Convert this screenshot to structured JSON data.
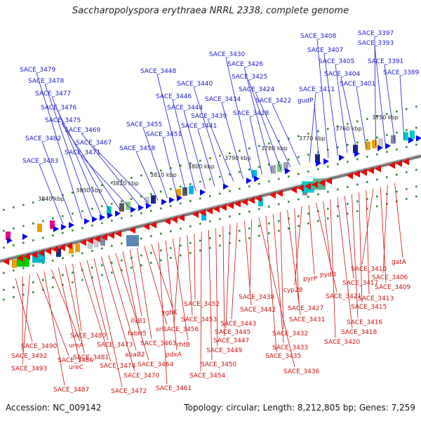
{
  "title": "Saccharopolyspora erythraea NRRL 2338, complete genome",
  "footer": {
    "accession": "Accession: NC_009142",
    "stats": "Topology: circular; Length: 8,212,805 bp; Genes: 7,259"
  },
  "colors": {
    "forward_arrow": "#0000ee",
    "reverse_arrow": "#ee0000",
    "forward_label": "#1a1acc",
    "reverse_label": "#cc1111",
    "tick": "#2a8a2a"
  },
  "ticks": [
    "3840 kbp",
    "3830 kbp",
    "3820 kbp",
    "3810 kbp",
    "3800 kbp",
    "3790 kbp",
    "3780 kbp",
    "3770 kbp",
    "3760 kbp",
    "3750 kbp"
  ],
  "forward_genes": [
    "SACE_3483",
    "SACE_3482",
    "SACE_3479",
    "SACE_3478",
    "SACE_3477",
    "SACE_3476",
    "SACE_3475",
    "SACE_3471",
    "SACE_3469",
    "SACE_3467",
    "SACE_3458",
    "SACE_3455",
    "SACE_3451",
    "SACE_3448",
    "SACE_3446",
    "SACE_3444",
    "SACE_3441",
    "SACE_3440",
    "SACE_3439",
    "SACE_3434",
    "SACE_3430",
    "SACE_3428",
    "SACE_3426",
    "SACE_3425",
    "SACE_3424",
    "SACE_3422",
    "SACE_3411",
    "gudP",
    "SACE_3408",
    "SACE_3407",
    "SACE_3405",
    "SACE_3404",
    "SACE_3401",
    "SACE_3397",
    "SACE_3393",
    "SACE_3391",
    "SACE_3389"
  ],
  "reverse_genes": [
    "SACE_3490",
    "SACE_3492",
    "SACE_3493",
    "SACE_3486",
    "SACE_3487",
    "ureA",
    "ureC",
    "SACE_3481",
    "SACE_3480",
    "SACE_3474",
    "SACE_3473",
    "SACE_3472",
    "SACE_3470",
    "abaB2",
    "SACE_3464",
    "fabH5",
    "ilvB1",
    "SACE_3463",
    "srl",
    "ygbK",
    "SACE_3461",
    "pdxA",
    "rhtB",
    "SACE_3456",
    "SACE_3453",
    "SACE_3452",
    "SACE_3454",
    "SACE_3450",
    "SACE_3449",
    "SACE_3447",
    "SACE_3445",
    "SACE_3443",
    "SACE_3442",
    "SACE_3438",
    "SACE_3436",
    "SACE_3435",
    "SACE_3433",
    "SACE_3432",
    "SACE_3431",
    "SACE_3427",
    "cyp28",
    "pyrP",
    "SACE_3421",
    "pydB",
    "SACE_3420",
    "SACE_3418",
    "SACE_3417",
    "SACE_3416",
    "SACE_3415",
    "SACE_3413",
    "SACE_3410",
    "SACE_3409",
    "SACE_3406",
    "gatA"
  ]
}
